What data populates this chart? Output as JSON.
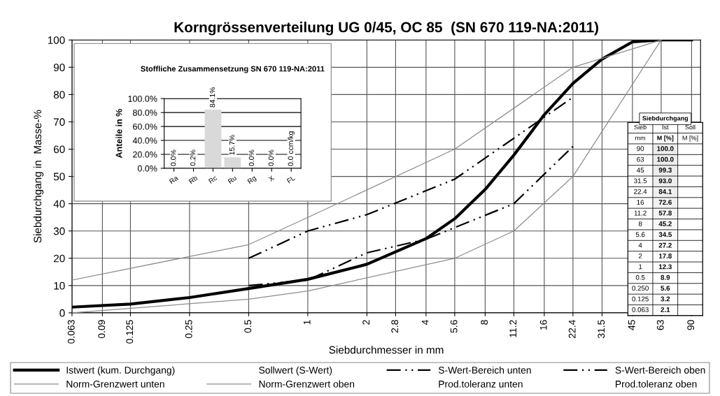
{
  "chart_data": [
    {
      "type": "line",
      "title": "Korngrössenverteilung UG 0/45, OC 85  (SN 670 119-NA:2011)",
      "xlabel": "Siebdurchmesser in mm",
      "ylabel": "Siebdurchgang in  Masse-%",
      "log": "x",
      "xlim": [
        0.063,
        100
      ],
      "xticks": [
        0.063,
        0.09,
        0.125,
        0.25,
        0.5,
        1,
        2,
        2.8,
        4,
        5.6,
        8,
        11.2,
        16,
        22.4,
        31.5,
        45,
        63,
        90
      ],
      "ylim": [
        0,
        100
      ],
      "yticks": [
        0,
        10,
        20,
        30,
        40,
        50,
        60,
        70,
        80,
        90,
        100
      ],
      "grid": true,
      "legend": "bottom",
      "series": [
        {
          "name": "Istwert (kum. Durchgang)",
          "color": "#000000",
          "line_style": "solid",
          "x": [
            0.063,
            0.125,
            0.25,
            0.5,
            1,
            2,
            4,
            5.6,
            8,
            11.2,
            16,
            22.4,
            31.5,
            45,
            63,
            90
          ],
          "values": [
            2.1,
            3.2,
            5.6,
            8.9,
            12.3,
            17.8,
            27.2,
            34.5,
            45.2,
            57.8,
            72.6,
            84.1,
            93.0,
            99.3,
            100.0,
            100.0
          ]
        },
        {
          "name": "Sollwert (S-Wert)"
        },
        {
          "name": "S-Wert-Bereich unten",
          "color": "#000000",
          "line_style": "dashdotdotted",
          "x": [
            0.5,
            1,
            2,
            4,
            11.2,
            22.4
          ],
          "values": [
            10,
            12,
            22,
            27,
            40,
            61
          ]
        },
        {
          "name": "S-Wert-Bereich oben",
          "color": "#000000",
          "line_style": "dashdotdotted",
          "x": [
            0.5,
            1,
            2,
            5.6,
            22.4
          ],
          "values": [
            20,
            30,
            36,
            49,
            79
          ]
        },
        {
          "name": "Norm-Grenzwert unten",
          "color": "#8c8c8c",
          "line_style": "solid",
          "x": [
            0.063,
            0.5,
            1,
            5.6,
            11.2,
            22.4,
            63
          ],
          "values": [
            0,
            5,
            8,
            20,
            30,
            50,
            100
          ]
        },
        {
          "name": "Norm-Grenzwert oben",
          "color": "#8c8c8c",
          "line_style": "solid",
          "x": [
            0.063,
            0.5,
            1,
            5.6,
            22.4,
            63
          ],
          "values": [
            12,
            25,
            35,
            60,
            90,
            100
          ]
        },
        {
          "name": "Prod.toleranz unten"
        },
        {
          "name": "Prod.toleranz oben"
        }
      ]
    },
    {
      "type": "bar",
      "title": "Stoffliche Zusammensetzung SN 670 119-NA:2011",
      "ylabel": "Anteile in %",
      "categories": [
        "Ra",
        "Rb",
        "Rc",
        "Ru",
        "Rg",
        "X",
        "FL"
      ],
      "values": [
        0.0,
        0.2,
        84.1,
        15.7,
        0.0,
        0.0,
        0.0
      ],
      "value_labels": [
        "0.0%",
        "0.2%",
        "84.1%",
        "15.7%",
        "0.0%",
        "0.0%",
        "0.0 ccm/kg"
      ],
      "color": "#d9d9d9",
      "ylim": [
        0,
        100
      ],
      "yticks": [
        {
          "value": 0,
          "label": "0.0%"
        },
        {
          "value": 20,
          "label": "20.0%"
        },
        {
          "value": 40,
          "label": "40.0%"
        },
        {
          "value": 60,
          "label": "60.0%"
        },
        {
          "value": 80,
          "label": "80.0%"
        },
        {
          "value": 100,
          "label": "100.0%"
        }
      ],
      "grid": "y"
    },
    {
      "type": "heatmap",
      "title": "Siebdurchgang",
      "annotations": [
        "Sieb",
        "mm",
        "M [%]",
        "M [%]"
      ],
      "categories": [
        "Ist",
        "Soll"
      ],
      "y_categories": [
        "90",
        "63",
        "45",
        "31.5",
        "22.4",
        "16",
        "11.2",
        "8",
        "5.6",
        "4",
        "2",
        "1",
        "0.5",
        "0.250",
        "0.125",
        "0.063"
      ],
      "cells": [
        [
          100.0,
          null
        ],
        [
          100.0,
          null
        ],
        [
          99.3,
          null
        ],
        [
          93.0,
          null
        ],
        [
          84.1,
          null
        ],
        [
          72.6,
          null
        ],
        [
          57.8,
          null
        ],
        [
          45.2,
          null
        ],
        [
          34.5,
          null
        ],
        [
          27.2,
          null
        ],
        [
          17.8,
          null
        ],
        [
          12.3,
          null
        ],
        [
          8.9,
          null
        ],
        [
          5.6,
          null
        ],
        [
          3.2,
          null
        ],
        [
          2.1,
          null
        ]
      ],
      "cell_labels": [
        [
          "100.0",
          null
        ],
        [
          "100.0",
          null
        ],
        [
          "99.3",
          null
        ],
        [
          "93.0",
          null
        ],
        [
          "84.1",
          null
        ],
        [
          "72.6",
          null
        ],
        [
          "57.8",
          null
        ],
        [
          "45.2",
          null
        ],
        [
          "34.5",
          null
        ],
        [
          "27.2",
          null
        ],
        [
          "17.8",
          null
        ],
        [
          "12.3",
          null
        ],
        [
          "8.9",
          null
        ],
        [
          "5.6",
          null
        ],
        [
          "3.2",
          null
        ],
        [
          "2.1",
          null
        ]
      ]
    }
  ]
}
